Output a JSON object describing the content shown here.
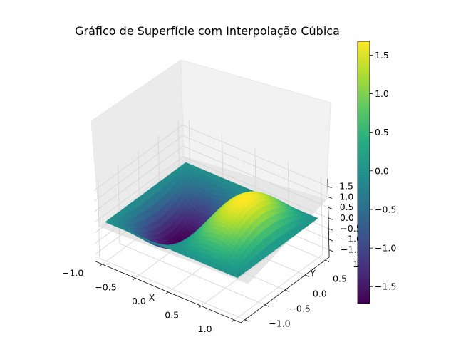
{
  "chart_data": {
    "type": "surface",
    "title": "Gráfico de Superfície com Interpolação Cúbica",
    "xlabel": "X",
    "ylabel": "Y",
    "zlabel": "",
    "xlim": [
      -1.1,
      1.1
    ],
    "ylim": [
      -1.1,
      1.1
    ],
    "zlim": [
      -1.85,
      1.85
    ],
    "x_ticks": [
      "−1.0",
      "−0.5",
      "0.0",
      "0.5",
      "1.0"
    ],
    "y_ticks": [
      "−1.0",
      "−0.5",
      "0.0",
      "0.5",
      "1.0"
    ],
    "z_ticks": [
      "−1.5",
      "−1.0",
      "−0.5",
      "0.0",
      "0.5",
      "1.0",
      "1.5"
    ],
    "colormap": "viridis",
    "colorbar": {
      "range": [
        -1.72,
        1.68
      ],
      "ticks": [
        "−1.5",
        "−1.0",
        "−0.5",
        "0.0",
        "0.5",
        "1.0",
        "1.5"
      ]
    },
    "grid": true,
    "surface": {
      "function": "sin(pi*x)*cos(pi*y/2)*1.7 (approx.)",
      "x_range": [
        -1,
        1
      ],
      "y_range": [
        -1,
        1
      ],
      "z_max": 1.68,
      "z_min": -1.72
    }
  }
}
